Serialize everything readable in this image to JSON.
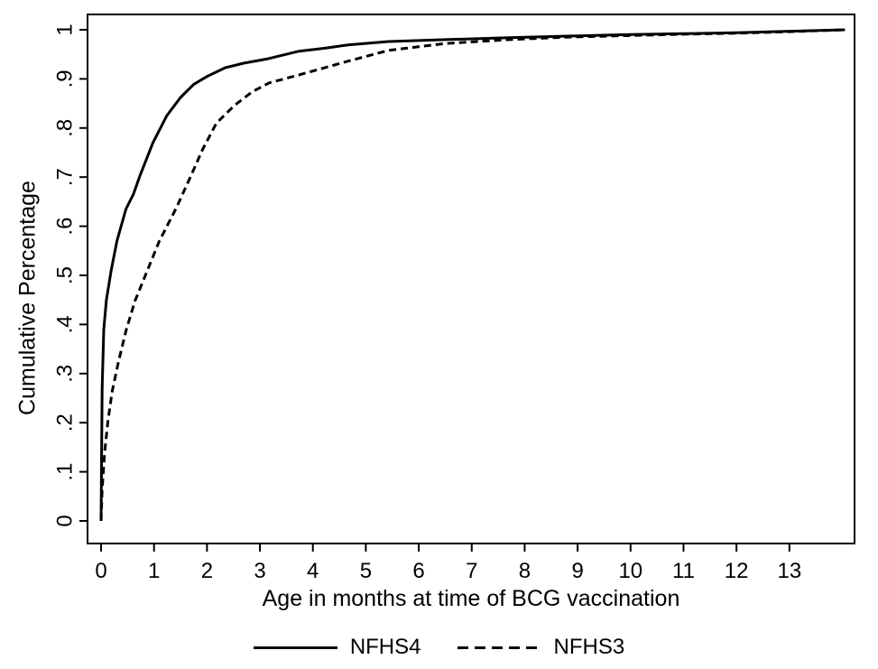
{
  "figure": {
    "background": "#ffffff",
    "line_color": "#000000",
    "frame_color": "#000000"
  },
  "chart_data": {
    "type": "line",
    "title": "",
    "xlabel": "Age in months at time of BCG vaccination",
    "ylabel": "Cumulative Percentage",
    "xlim": [
      -0.256,
      14.23
    ],
    "ylim": [
      -0.046,
      1.0312
    ],
    "grid": false,
    "legend_position": "bottom-center",
    "x_tick_values": [
      0,
      1,
      2,
      3,
      4,
      5,
      6,
      7,
      8,
      9,
      10,
      11,
      12,
      13
    ],
    "x_tick_labels": [
      "0",
      "1",
      "2",
      "3",
      "4",
      "5",
      "6",
      "7",
      "8",
      "9",
      "10",
      "11",
      "12",
      "13"
    ],
    "y_tick_values": [
      0,
      0.1,
      0.2,
      0.3,
      0.4,
      0.5,
      0.6,
      0.7,
      0.8,
      0.9,
      1
    ],
    "y_tick_labels": [
      "0",
      ".1",
      ".2",
      ".3",
      ".4",
      ".5",
      ".6",
      ".7",
      ".8",
      ".9",
      "1"
    ],
    "series": [
      {
        "name": "NFHS4",
        "style": "solid",
        "points": [
          [
            0,
            0
          ],
          [
            0.02,
            0.27
          ],
          [
            0.05,
            0.39
          ],
          [
            0.1,
            0.45
          ],
          [
            0.19,
            0.51
          ],
          [
            0.3,
            0.57
          ],
          [
            0.47,
            0.635
          ],
          [
            0.61,
            0.665
          ],
          [
            0.73,
            0.702
          ],
          [
            0.98,
            0.77
          ],
          [
            1.24,
            0.825
          ],
          [
            1.5,
            0.862
          ],
          [
            1.75,
            0.889
          ],
          [
            2.0,
            0.905
          ],
          [
            2.35,
            0.923
          ],
          [
            2.69,
            0.932
          ],
          [
            3.15,
            0.941
          ],
          [
            3.72,
            0.956
          ],
          [
            4.26,
            0.963
          ],
          [
            4.66,
            0.969
          ],
          [
            5.43,
            0.976
          ],
          [
            6.5,
            0.98
          ],
          [
            7.7,
            0.984
          ],
          [
            8.8,
            0.987
          ],
          [
            9.9,
            0.99
          ],
          [
            11,
            0.992
          ],
          [
            12,
            0.994
          ],
          [
            13,
            0.997
          ],
          [
            14.05,
            1.0
          ]
        ]
      },
      {
        "name": "NFHS3",
        "style": "dashed",
        "points": [
          [
            0,
            0
          ],
          [
            0.02,
            0.065
          ],
          [
            0.07,
            0.142
          ],
          [
            0.13,
            0.203
          ],
          [
            0.21,
            0.264
          ],
          [
            0.33,
            0.325
          ],
          [
            0.47,
            0.387
          ],
          [
            0.64,
            0.448
          ],
          [
            0.87,
            0.509
          ],
          [
            1.1,
            0.57
          ],
          [
            1.41,
            0.635
          ],
          [
            1.67,
            0.696
          ],
          [
            1.92,
            0.757
          ],
          [
            2.18,
            0.81
          ],
          [
            2.52,
            0.846
          ],
          [
            2.86,
            0.874
          ],
          [
            3.18,
            0.892
          ],
          [
            3.7,
            0.907
          ],
          [
            4.2,
            0.922
          ],
          [
            4.66,
            0.936
          ],
          [
            5.43,
            0.958
          ],
          [
            6.5,
            0.972
          ],
          [
            7.7,
            0.98
          ],
          [
            8.8,
            0.985
          ],
          [
            9.9,
            0.988
          ],
          [
            11,
            0.991
          ],
          [
            12,
            0.993
          ],
          [
            13,
            0.996
          ],
          [
            14.05,
            1.0
          ]
        ]
      }
    ]
  },
  "legend": {
    "items": [
      {
        "label": "NFHS4",
        "style": "solid"
      },
      {
        "label": "NFHS3",
        "style": "dashed"
      }
    ]
  }
}
